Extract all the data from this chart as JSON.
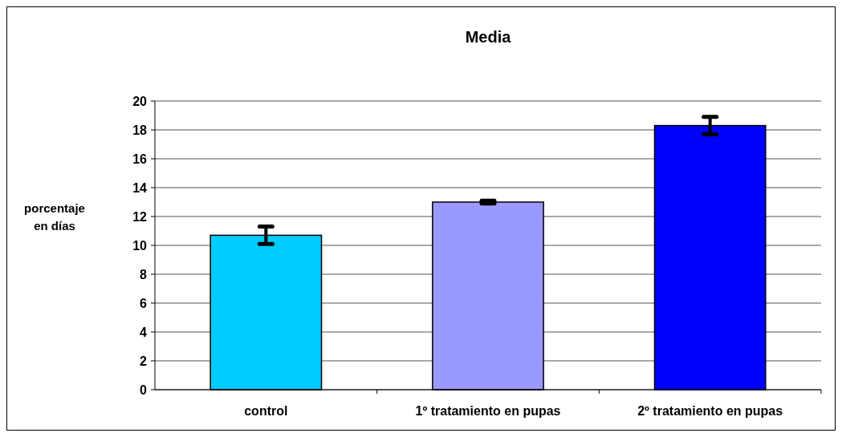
{
  "chart_data": {
    "type": "bar",
    "title": "Media",
    "ylabel": "porcentaje en días",
    "categories": [
      "control",
      "1º tratamiento en pupas",
      "2º tratamiento en pupas"
    ],
    "values": [
      10.7,
      13.0,
      18.3
    ],
    "errors": [
      0.6,
      0.1,
      0.6
    ],
    "colors": [
      "#00ccff",
      "#9999ff",
      "#0000ff"
    ],
    "ylim": [
      0,
      20
    ],
    "yticks": [
      0,
      2,
      4,
      6,
      8,
      10,
      12,
      14,
      16,
      18,
      20
    ],
    "grid": "y"
  }
}
